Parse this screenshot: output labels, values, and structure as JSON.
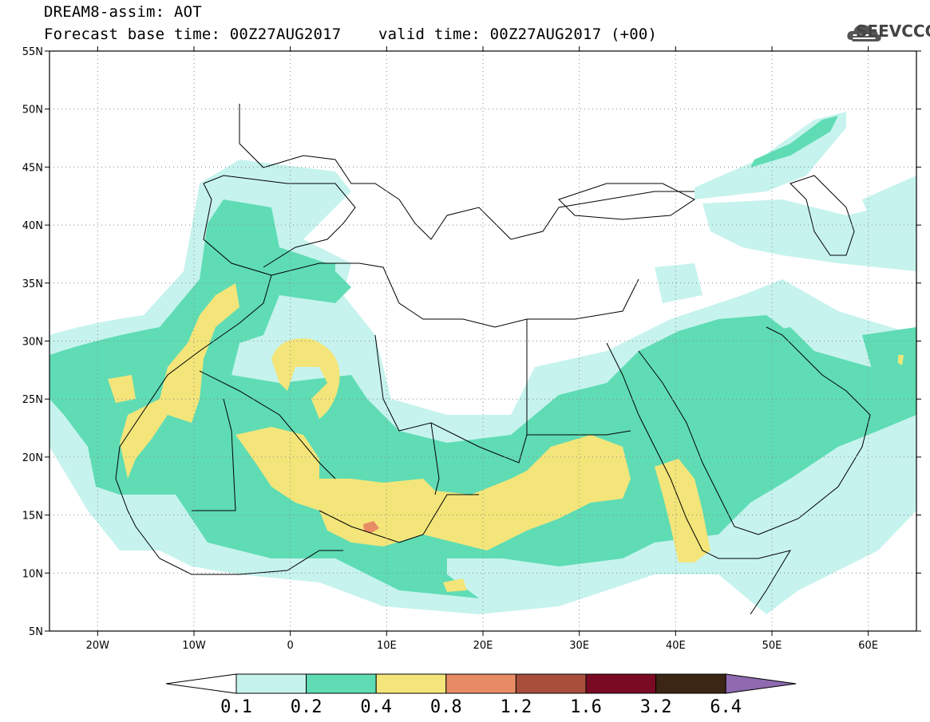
{
  "title": {
    "line1": "DREAM8-assim: AOT",
    "line2": "Forecast base time: 00Z27AUG2017    valid time: 00Z27AUG2017 (+00)"
  },
  "logo": {
    "text": "SEEVCCC",
    "icon": "cloud-logo-icon"
  },
  "map": {
    "lon_range": [
      -25,
      65
    ],
    "lat_range": [
      5,
      55
    ],
    "lat_ticks": [
      {
        "value": 55,
        "label": "55N"
      },
      {
        "value": 50,
        "label": "50N"
      },
      {
        "value": 45,
        "label": "45N"
      },
      {
        "value": 40,
        "label": "40N"
      },
      {
        "value": 35,
        "label": "35N"
      },
      {
        "value": 30,
        "label": "30N"
      },
      {
        "value": 25,
        "label": "25N"
      },
      {
        "value": 20,
        "label": "20N"
      },
      {
        "value": 15,
        "label": "15N"
      },
      {
        "value": 10,
        "label": "10N"
      },
      {
        "value": 5,
        "label": "5N"
      }
    ],
    "lon_ticks": [
      {
        "value": -20,
        "label": "20W"
      },
      {
        "value": -10,
        "label": "10W"
      },
      {
        "value": 0,
        "label": "0"
      },
      {
        "value": 10,
        "label": "10E"
      },
      {
        "value": 20,
        "label": "20E"
      },
      {
        "value": 30,
        "label": "30E"
      },
      {
        "value": 40,
        "label": "40E"
      },
      {
        "value": 50,
        "label": "50E"
      },
      {
        "value": 60,
        "label": "60E"
      }
    ],
    "grid": "dotted"
  },
  "colorbar": {
    "labels": [
      "0.1",
      "0.2",
      "0.4",
      "0.8",
      "1.2",
      "1.6",
      "3.2",
      "6.4"
    ],
    "colors": {
      "c1": "#c6f3ee",
      "c2": "#5fdcb4",
      "c3": "#f3e57a",
      "c4": "#e88c66",
      "c5": "#a84f3c",
      "c6": "#7a0a24",
      "c7": "#3b2514",
      "c8": "#8f6ab0"
    }
  }
}
